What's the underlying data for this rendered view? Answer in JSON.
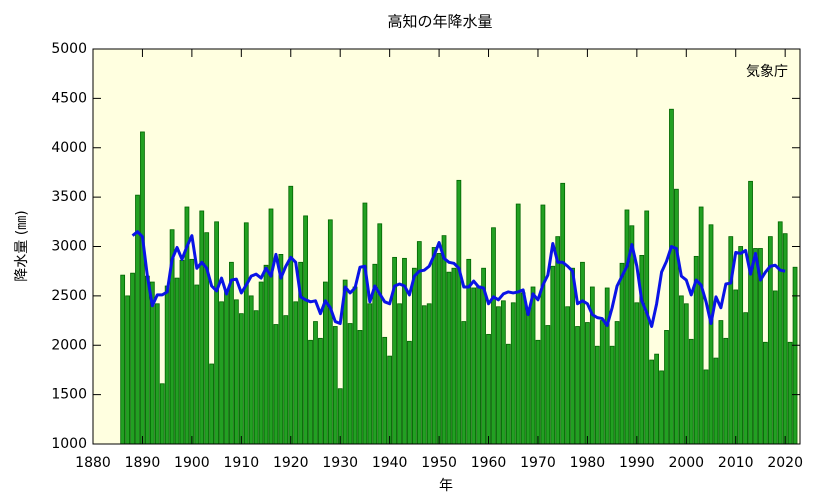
{
  "chart_data": {
    "type": "bar-line",
    "title": "高知の年降水量",
    "xlabel": "年",
    "ylabel": "降水量 (㎜)",
    "annotation": "気象庁",
    "xlim": [
      1880,
      2023
    ],
    "ylim": [
      1000,
      5000
    ],
    "xticks": [
      1880,
      1890,
      1900,
      1910,
      1920,
      1930,
      1940,
      1950,
      1960,
      1970,
      1980,
      1990,
      2000,
      2010,
      2020
    ],
    "yticks": [
      1000,
      1500,
      2000,
      2500,
      3000,
      3500,
      4000,
      4500,
      5000
    ],
    "grid": false,
    "series": [
      {
        "type": "bar",
        "color": "#22a022",
        "edgecolor": "#006400",
        "x": [
          1886,
          1887,
          1888,
          1889,
          1890,
          1891,
          1892,
          1893,
          1894,
          1895,
          1896,
          1897,
          1898,
          1899,
          1900,
          1901,
          1902,
          1903,
          1904,
          1905,
          1906,
          1907,
          1908,
          1909,
          1910,
          1911,
          1912,
          1913,
          1914,
          1915,
          1916,
          1917,
          1918,
          1919,
          1920,
          1921,
          1922,
          1923,
          1924,
          1925,
          1926,
          1927,
          1928,
          1929,
          1930,
          1931,
          1932,
          1933,
          1934,
          1935,
          1936,
          1937,
          1938,
          1939,
          1940,
          1941,
          1942,
          1943,
          1944,
          1945,
          1946,
          1947,
          1948,
          1949,
          1950,
          1951,
          1952,
          1953,
          1954,
          1955,
          1956,
          1957,
          1958,
          1959,
          1960,
          1961,
          1962,
          1963,
          1964,
          1965,
          1966,
          1967,
          1968,
          1969,
          1970,
          1971,
          1972,
          1973,
          1974,
          1975,
          1976,
          1977,
          1978,
          1979,
          1980,
          1981,
          1982,
          1983,
          1984,
          1985,
          1986,
          1987,
          1988,
          1989,
          1990,
          1991,
          1992,
          1993,
          1994,
          1995,
          1996,
          1997,
          1998,
          1999,
          2000,
          2001,
          2002,
          2003,
          2004,
          2005,
          2006,
          2007,
          2008,
          2009,
          2010,
          2011,
          2012,
          2013,
          2014,
          2015,
          2016,
          2017,
          2018,
          2019,
          2020,
          2021,
          2022
        ],
        "values": [
          2710,
          2500,
          2730,
          3520,
          4160,
          2700,
          2640,
          2420,
          1610,
          2600,
          3170,
          2680,
          2860,
          3400,
          2870,
          2610,
          3360,
          3140,
          1810,
          3250,
          2440,
          2550,
          2840,
          2460,
          2320,
          3240,
          2500,
          2350,
          2640,
          2810,
          3380,
          2210,
          2920,
          2300,
          3610,
          2440,
          2840,
          3310,
          2050,
          2240,
          2070,
          2640,
          3270,
          2190,
          1560,
          2660,
          2220,
          2590,
          2150,
          3440,
          2420,
          2820,
          3230,
          2080,
          1890,
          2890,
          2420,
          2880,
          2040,
          2780,
          3050,
          2400,
          2420,
          2990,
          2930,
          3110,
          2740,
          2780,
          3670,
          2240,
          2870,
          2580,
          2600,
          2780,
          2110,
          3190,
          2390,
          2450,
          2010,
          2430,
          3430,
          2530,
          2350,
          2590,
          2050,
          3420,
          2200,
          2800,
          3100,
          3640,
          2390,
          2780,
          2190,
          2840,
          2230,
          2590,
          1990,
          2250,
          2580,
          1990,
          2240,
          2830,
          3370,
          3210,
          2430,
          2910,
          3360,
          1850,
          1910,
          1740,
          2150,
          4390,
          3580,
          2500,
          2420,
          2060,
          2900,
          3400,
          1750,
          3220,
          1870,
          2250,
          2070,
          3100,
          2560,
          3000,
          2330,
          3660,
          2980,
          2980,
          2030,
          3100,
          2550,
          3250,
          3130,
          2030,
          2790
        ]
      },
      {
        "type": "line",
        "color": "#0a14e6",
        "x": [
          1888,
          1889,
          1890,
          1891,
          1892,
          1893,
          1894,
          1895,
          1896,
          1897,
          1898,
          1899,
          1900,
          1901,
          1902,
          1903,
          1904,
          1905,
          1906,
          1907,
          1908,
          1909,
          1910,
          1911,
          1912,
          1913,
          1914,
          1915,
          1916,
          1917,
          1918,
          1919,
          1920,
          1921,
          1922,
          1923,
          1924,
          1925,
          1926,
          1927,
          1928,
          1929,
          1930,
          1931,
          1932,
          1933,
          1934,
          1935,
          1936,
          1937,
          1938,
          1939,
          1940,
          1941,
          1942,
          1943,
          1944,
          1945,
          1946,
          1947,
          1948,
          1949,
          1950,
          1951,
          1952,
          1953,
          1954,
          1955,
          1956,
          1957,
          1958,
          1959,
          1960,
          1961,
          1962,
          1963,
          1964,
          1965,
          1966,
          1967,
          1968,
          1969,
          1970,
          1971,
          1972,
          1973,
          1974,
          1975,
          1976,
          1977,
          1978,
          1979,
          1980,
          1981,
          1982,
          1983,
          1984,
          1985,
          1986,
          1987,
          1988,
          1989,
          1990,
          1991,
          1992,
          1993,
          1994,
          1995,
          1996,
          1997,
          1998,
          1999,
          2000,
          2001,
          2002,
          2003,
          2004,
          2005,
          2006,
          2007,
          2008,
          2009,
          2010,
          2011,
          2012,
          2013,
          2014,
          2015,
          2016,
          2017,
          2018,
          2019,
          2020
        ],
        "values": [
          3110,
          3150,
          3100,
          2700,
          2400,
          2510,
          2510,
          2540,
          2870,
          2990,
          2870,
          3000,
          3110,
          2780,
          2840,
          2780,
          2600,
          2550,
          2680,
          2520,
          2660,
          2670,
          2530,
          2610,
          2700,
          2720,
          2680,
          2780,
          2700,
          2920,
          2680,
          2800,
          2890,
          2840,
          2490,
          2460,
          2440,
          2450,
          2320,
          2450,
          2380,
          2240,
          2220,
          2590,
          2530,
          2580,
          2790,
          2800,
          2440,
          2600,
          2520,
          2440,
          2420,
          2600,
          2620,
          2600,
          2510,
          2700,
          2750,
          2760,
          2800,
          2910,
          3040,
          2880,
          2840,
          2830,
          2780,
          2590,
          2590,
          2650,
          2590,
          2580,
          2420,
          2490,
          2460,
          2520,
          2540,
          2530,
          2540,
          2560,
          2310,
          2520,
          2460,
          2610,
          2710,
          3030,
          2840,
          2840,
          2800,
          2750,
          2420,
          2450,
          2420,
          2310,
          2280,
          2270,
          2200,
          2380,
          2600,
          2700,
          2800,
          3020,
          2800,
          2450,
          2330,
          2190,
          2420,
          2740,
          2850,
          3000,
          2980,
          2700,
          2660,
          2510,
          2660,
          2610,
          2440,
          2220,
          2490,
          2380,
          2620,
          2630,
          2940,
          2930,
          2960,
          2720,
          2930,
          2660,
          2740,
          2800,
          2810,
          2760,
          2750
        ]
      }
    ]
  }
}
